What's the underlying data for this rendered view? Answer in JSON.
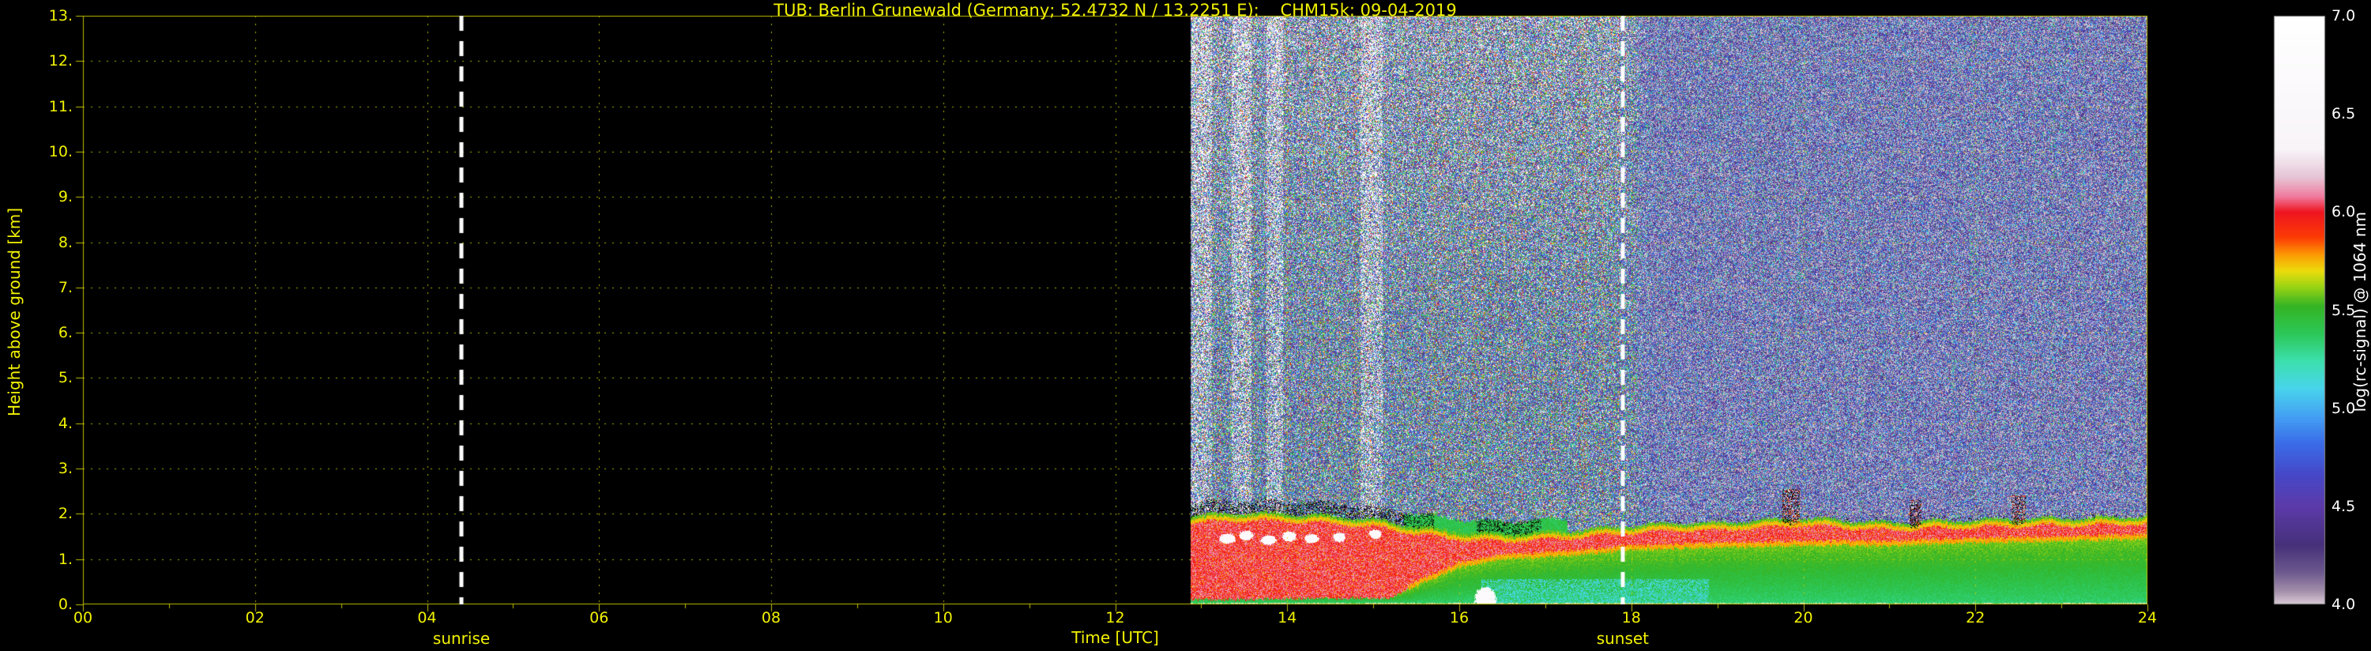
{
  "figure": {
    "background": "#000000",
    "axes_text_color": "#f2f200",
    "colorbar_text_color": "#ffffff"
  },
  "chart_data": {
    "type": "heatmap",
    "title": "TUB: Berlin Grunewald (Germany; 52.4732 N / 13.2251 E):    CHM15k: 09-04-2019",
    "xlabel": "Time [UTC]",
    "ylabel": "Height above ground [km]",
    "xlim": [
      0,
      24
    ],
    "ylim": [
      0,
      13
    ],
    "x_tick_hours": [
      0,
      2,
      4,
      6,
      8,
      10,
      12,
      14,
      16,
      18,
      20,
      22,
      24
    ],
    "x_tick_labels": [
      "00",
      "02",
      "04",
      "06",
      "08",
      "10",
      "12",
      "14",
      "16",
      "18",
      "20",
      "22",
      "24"
    ],
    "y_tick_km": [
      0,
      1,
      2,
      3,
      4,
      5,
      6,
      7,
      8,
      9,
      10,
      11,
      12,
      13
    ],
    "y_tick_labels": [
      "0.",
      "1.",
      "2.",
      "3.",
      "4.",
      "5.",
      "6.",
      "7.",
      "8.",
      "9.",
      "10.",
      "11.",
      "12.",
      "13."
    ],
    "grid": {
      "on": true,
      "color": "#d2d200",
      "style": "dotted"
    },
    "annotations": [
      {
        "name": "sunrise",
        "label": "sunrise",
        "time_utc": 4.4,
        "line_style": "white-dashed"
      },
      {
        "name": "sunset",
        "label": "sunset",
        "time_utc": 17.9,
        "line_style": "white-dashed"
      }
    ],
    "colorbar": {
      "label": "log(rc-signal) @ 1064 nm",
      "min": 4.0,
      "max": 7.0,
      "ticks": [
        7.0,
        6.5,
        6.0,
        5.5,
        5.0,
        4.5,
        4.0
      ],
      "tick_labels": [
        "7.0",
        "6.5",
        "6.0",
        "5.5",
        "5.0",
        "4.5",
        "4.0"
      ],
      "stops": [
        {
          "v": 4.0,
          "c": "#d8c8d4"
        },
        {
          "v": 4.07,
          "c": "#a08ca8"
        },
        {
          "v": 4.16,
          "c": "#6e5a8e"
        },
        {
          "v": 4.3,
          "c": "#46307a"
        },
        {
          "v": 4.5,
          "c": "#5c3aaa"
        },
        {
          "v": 4.66,
          "c": "#4648c8"
        },
        {
          "v": 4.82,
          "c": "#3a6ce8"
        },
        {
          "v": 4.96,
          "c": "#44a2f4"
        },
        {
          "v": 5.1,
          "c": "#48d4ec"
        },
        {
          "v": 5.24,
          "c": "#3ce0ac"
        },
        {
          "v": 5.38,
          "c": "#2cc858"
        },
        {
          "v": 5.52,
          "c": "#34b424"
        },
        {
          "v": 5.62,
          "c": "#9cd414"
        },
        {
          "v": 5.7,
          "c": "#ecdc0c"
        },
        {
          "v": 5.78,
          "c": "#fc9c04"
        },
        {
          "v": 5.87,
          "c": "#fc3c04"
        },
        {
          "v": 6.0,
          "c": "#ee1420"
        },
        {
          "v": 6.08,
          "c": "#f07ca0"
        },
        {
          "v": 6.18,
          "c": "#e6c6d6"
        },
        {
          "v": 6.32,
          "c": "#f8f4f8"
        },
        {
          "v": 7.0,
          "c": "#ffffff"
        }
      ]
    },
    "data_coverage": {
      "start_utc": 12.87,
      "end_utc": 24.0,
      "note": "no measurement data before ~12:52 UTC; left part of plot is blank"
    },
    "aerosol_layer": {
      "top_km": [
        [
          12.87,
          1.95
        ],
        [
          13.5,
          2.02
        ],
        [
          14,
          2.0
        ],
        [
          14.5,
          1.95
        ],
        [
          15,
          1.88
        ],
        [
          15.5,
          1.72
        ],
        [
          16,
          1.6
        ],
        [
          16.5,
          1.55
        ],
        [
          17,
          1.6
        ],
        [
          17.5,
          1.66
        ],
        [
          18,
          1.74
        ],
        [
          18.5,
          1.8
        ],
        [
          19,
          1.8
        ],
        [
          19.5,
          1.86
        ],
        [
          20,
          1.9
        ],
        [
          20.5,
          1.86
        ],
        [
          21,
          1.8
        ],
        [
          21.5,
          1.84
        ],
        [
          22,
          1.86
        ],
        [
          22.5,
          1.9
        ],
        [
          23,
          1.9
        ],
        [
          23.5,
          1.92
        ],
        [
          24,
          1.95
        ]
      ],
      "strong_signal_base_km": [
        [
          12.87,
          0.1
        ],
        [
          15.2,
          0.14
        ],
        [
          15.6,
          0.5
        ],
        [
          16,
          0.82
        ],
        [
          16.5,
          1.0
        ],
        [
          17,
          1.05
        ],
        [
          17.5,
          1.12
        ],
        [
          18,
          1.2
        ],
        [
          19,
          1.26
        ],
        [
          20,
          1.3
        ],
        [
          21,
          1.3
        ],
        [
          22,
          1.36
        ],
        [
          23,
          1.4
        ],
        [
          24,
          1.45
        ]
      ],
      "strong_signal_log_rc": 5.95,
      "mixed_layer_log_rc": 5.4
    },
    "features": {
      "cloud_patches": [
        {
          "t": 13.3,
          "h": 1.45,
          "rt": 0.09,
          "rh": 0.11
        },
        {
          "t": 13.52,
          "h": 1.52,
          "rt": 0.08,
          "rh": 0.1
        },
        {
          "t": 13.78,
          "h": 1.42,
          "rt": 0.09,
          "rh": 0.1
        },
        {
          "t": 14.02,
          "h": 1.5,
          "rt": 0.08,
          "rh": 0.11
        },
        {
          "t": 14.28,
          "h": 1.45,
          "rt": 0.08,
          "rh": 0.1
        },
        {
          "t": 14.6,
          "h": 1.48,
          "rt": 0.07,
          "rh": 0.1
        },
        {
          "t": 15.02,
          "h": 1.55,
          "rt": 0.07,
          "rh": 0.1
        },
        {
          "t": 16.3,
          "h": 0.12,
          "rt": 0.12,
          "rh": 0.25
        }
      ],
      "dark_spikes": [
        {
          "t": 19.85,
          "width": 0.2,
          "top_km": 2.55
        },
        {
          "t": 21.3,
          "width": 0.14,
          "top_km": 2.3
        },
        {
          "t": 22.5,
          "width": 0.16,
          "top_km": 2.4
        }
      ],
      "bright_noise_columns": [
        [
          12.88,
          13.12
        ],
        [
          13.35,
          13.58
        ],
        [
          13.75,
          13.95
        ],
        [
          14.85,
          15.1
        ]
      ]
    },
    "noise": {
      "day_white_speckle_p": 0.07,
      "day_white_speckle_alt_gain": 0.13,
      "night_white_speckle_p": 0.012,
      "day_scale": 1.75,
      "day_exp": 1.5,
      "night_scale": 1.3,
      "night_exp": 2.3,
      "sunset_transition_utc": [
        17.9,
        18.25
      ]
    }
  }
}
